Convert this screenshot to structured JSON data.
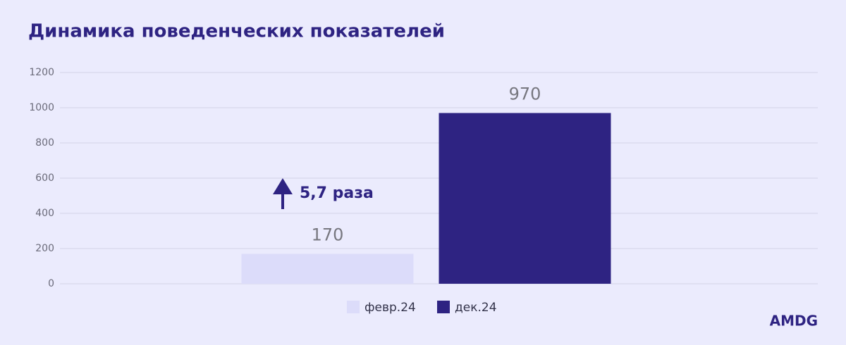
{
  "chart_data": {
    "type": "bar",
    "title": "Динамика поведенческих показателей",
    "categories": [
      null
    ],
    "series": [
      {
        "name": "февр.24",
        "color": "#dcdcfa",
        "values": [
          170
        ]
      },
      {
        "name": "дек.24",
        "color": "#2e2382",
        "values": [
          970
        ]
      }
    ],
    "ylim": [
      0,
      1200
    ],
    "yticks": [
      0,
      200,
      400,
      600,
      800,
      1000,
      1200
    ],
    "grid": true,
    "annotation": "5,7 раза",
    "legend": "bottom"
  },
  "brand": "AMDG"
}
